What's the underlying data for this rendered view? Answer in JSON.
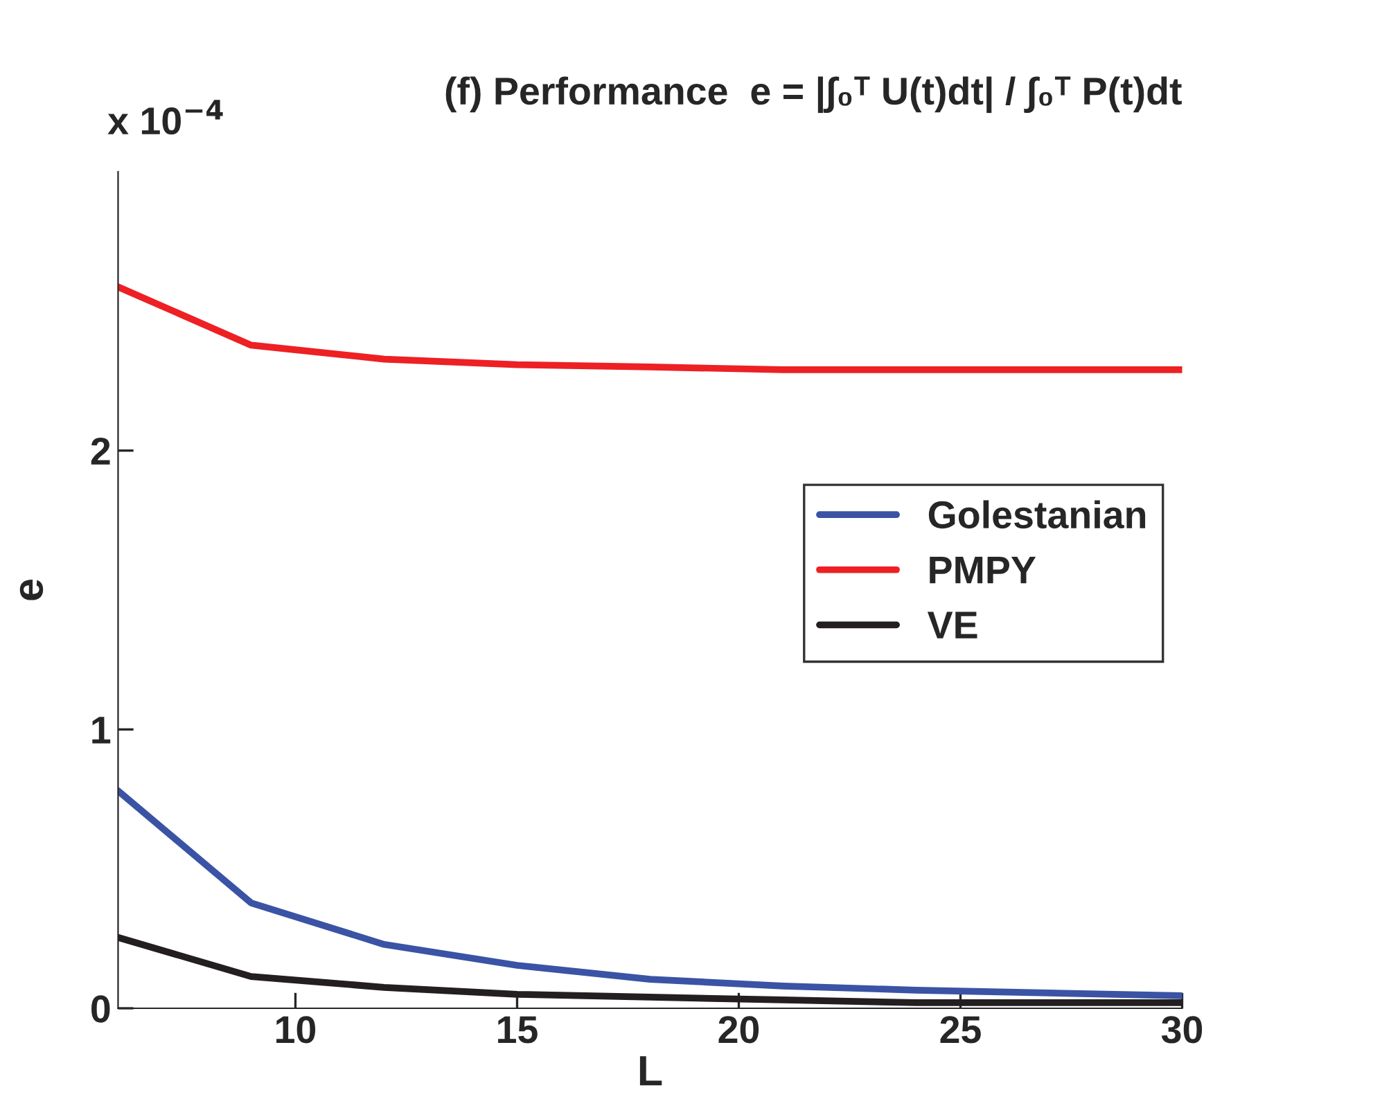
{
  "chart_data": {
    "type": "line",
    "title": "(f) Performance  e = |∫₀ᵀ U(t)dt| / ∫₀ᵀ P(t)dt",
    "xlabel": "L",
    "ylabel": "e",
    "annotations": [
      "x 10$^{−4}$"
    ],
    "x": [
      6,
      9,
      12,
      15,
      18,
      21,
      24,
      27,
      30
    ],
    "series": [
      {
        "name": "Golestanian",
        "color": "#3a53a4",
        "values": [
          0.78,
          0.378,
          0.229,
          0.154,
          0.104,
          0.08,
          0.065,
          0.055,
          0.045
        ]
      },
      {
        "name": "PMPY",
        "color": "#ed2024",
        "values": [
          2.587,
          2.378,
          2.328,
          2.308,
          2.3,
          2.29,
          2.29,
          2.29,
          2.29
        ]
      },
      {
        "name": "VE",
        "color": "#231f20",
        "values": [
          0.254,
          0.114,
          0.075,
          0.05,
          0.04,
          0.03,
          0.02,
          0.02,
          0.02
        ]
      }
    ],
    "xlim": [
      6,
      30
    ],
    "xticks": [
      10,
      15,
      20,
      25,
      30
    ],
    "ylim": [
      0,
      3
    ],
    "yticks": [
      0,
      1,
      2
    ],
    "grid": false,
    "legend": "right",
    "marker": "none",
    "line_style": "solid"
  }
}
